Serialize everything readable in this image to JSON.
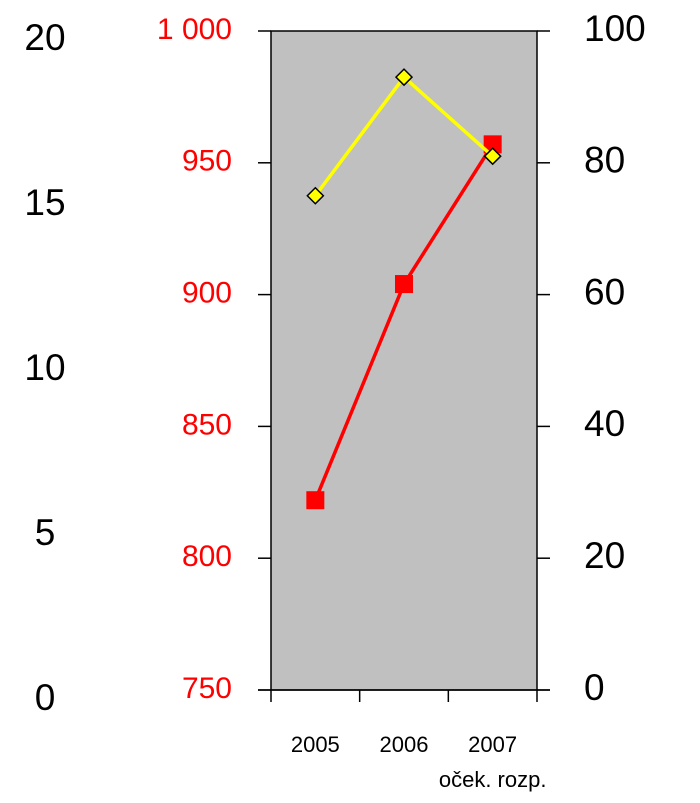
{
  "chart_data": {
    "type": "line",
    "categories": [
      "2005",
      "2006",
      "2007\noček. rozp."
    ],
    "series": [
      {
        "color": "#ff0000",
        "marker": "square",
        "axis": "y",
        "values": [
          822,
          904,
          957
        ]
      },
      {
        "color": "#ffff00",
        "marker": "diamond",
        "axis": "y2",
        "values": [
          75,
          93,
          81
        ]
      }
    ],
    "ylim": [
      750,
      1000
    ],
    "yticks": [
      750,
      800,
      850,
      900,
      950,
      {
        "value": 1000,
        "label": "1 000"
      }
    ],
    "ytick_color": "#ff0000",
    "y2lim": [
      0,
      100
    ],
    "y2ticks": [
      0,
      20,
      40,
      60,
      80,
      100
    ],
    "y3lim": [
      0,
      20
    ],
    "y3ticks": [
      0,
      5,
      10,
      15,
      20
    ],
    "plot_background": "#c0c0c0",
    "grid": false
  }
}
